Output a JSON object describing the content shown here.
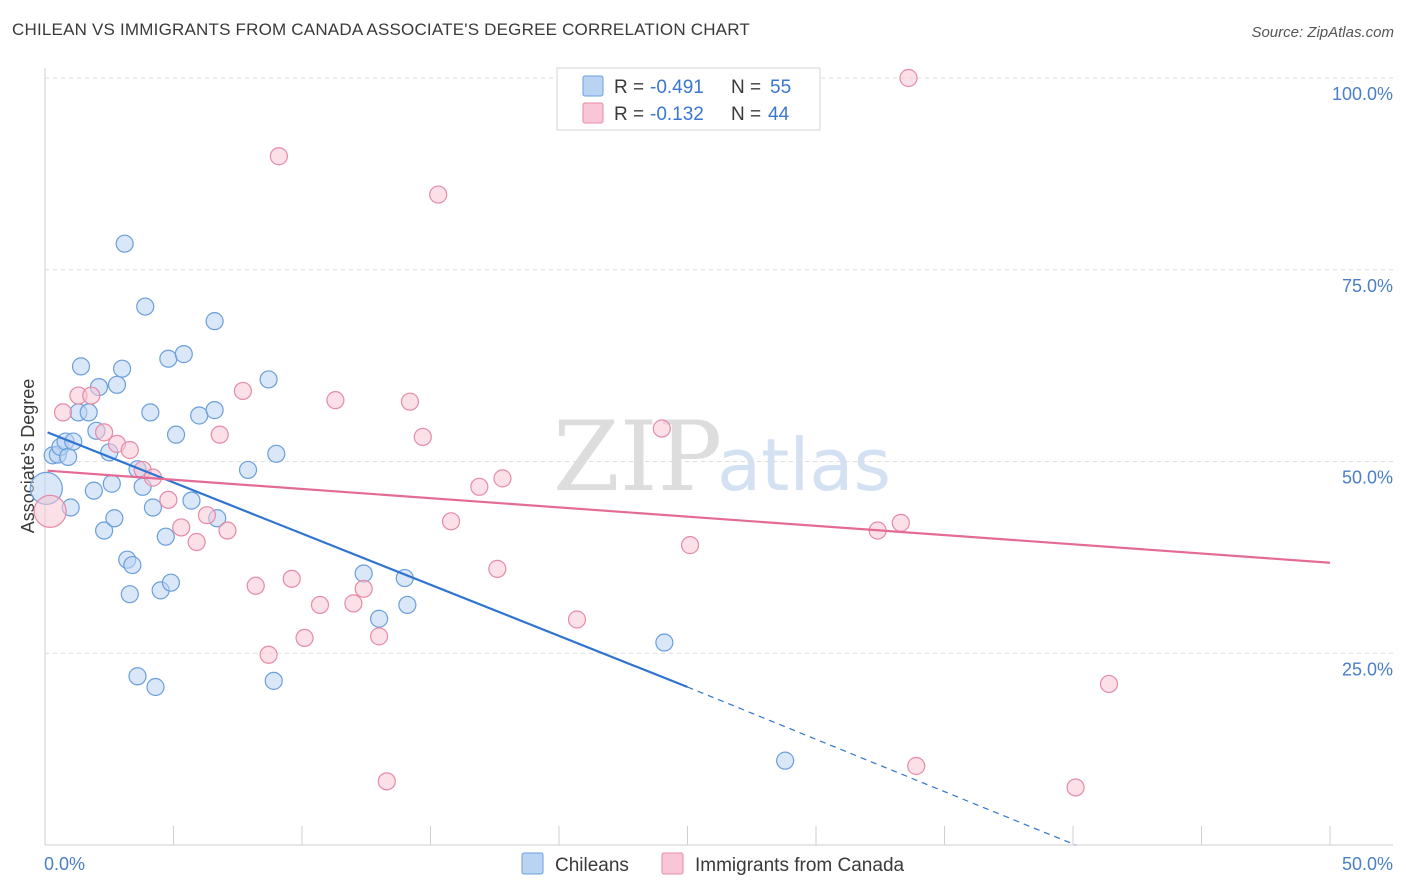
{
  "header": {
    "title": "CHILEAN VS IMMIGRANTS FROM CANADA ASSOCIATE'S DEGREE CORRELATION CHART",
    "source": "Source: ZipAtlas.com"
  },
  "watermark": {
    "part1": "ZIP",
    "part2": "atlas"
  },
  "legend": {
    "rows": [
      {
        "r_label": "R =",
        "r_value": "-0.491",
        "n_label": "N =",
        "n_value": "55"
      },
      {
        "r_label": "R =",
        "r_value": "-0.132",
        "n_label": "N =",
        "n_value": "44"
      }
    ]
  },
  "colors": {
    "blue_fill": "#b9d3f3",
    "blue_stroke": "#6a9fdc",
    "blue_line": "#2f74d0",
    "pink_fill": "#f8c6d6",
    "pink_stroke": "#e58aa8",
    "pink_line": "#e36b95",
    "tick_text": "#4a7fc8",
    "grid": "#dcdcdc"
  },
  "chart_data": {
    "type": "scatter",
    "ylabel": "Associate's Degree",
    "xlim": [
      0,
      50
    ],
    "ylim": [
      0,
      100
    ],
    "y_ticks": [
      {
        "value": 100,
        "label": "100.0%"
      },
      {
        "value": 75,
        "label": "75.0%"
      },
      {
        "value": 50,
        "label": "50.0%"
      },
      {
        "value": 25,
        "label": "25.0%"
      }
    ],
    "x_tick_labels": {
      "min": "0.0%",
      "max": "50.0%"
    },
    "grid": true,
    "legend_position": "top-center",
    "series": [
      {
        "name": "Chileans",
        "color": "#6a9fdc",
        "trend": {
          "x_start": 0.1,
          "y_start": 53.8,
          "x_solid_end": 25.0,
          "y_solid_end": 20.6,
          "x_dash_end": 40.1,
          "y_dash_end": 0.0
        },
        "points": [
          [
            0.05,
            46.5
          ],
          [
            0.3,
            50.8
          ],
          [
            0.5,
            50.9
          ],
          [
            0.6,
            51.9
          ],
          [
            0.8,
            52.6
          ],
          [
            0.9,
            50.6
          ],
          [
            1.0,
            44.0
          ],
          [
            1.1,
            52.6
          ],
          [
            1.3,
            56.4
          ],
          [
            1.4,
            62.4
          ],
          [
            1.7,
            56.4
          ],
          [
            1.9,
            46.2
          ],
          [
            2.0,
            54.0
          ],
          [
            2.1,
            59.7
          ],
          [
            2.3,
            41.0
          ],
          [
            2.5,
            51.2
          ],
          [
            2.6,
            47.1
          ],
          [
            2.7,
            42.6
          ],
          [
            2.8,
            60.0
          ],
          [
            3.0,
            62.1
          ],
          [
            3.1,
            78.4
          ],
          [
            3.2,
            37.2
          ],
          [
            3.3,
            32.7
          ],
          [
            3.4,
            36.5
          ],
          [
            3.6,
            49.0
          ],
          [
            3.6,
            22.0
          ],
          [
            3.8,
            46.7
          ],
          [
            3.9,
            70.2
          ],
          [
            4.1,
            56.4
          ],
          [
            4.2,
            44.0
          ],
          [
            4.3,
            20.6
          ],
          [
            4.5,
            33.2
          ],
          [
            4.7,
            40.2
          ],
          [
            4.8,
            63.4
          ],
          [
            4.9,
            34.2
          ],
          [
            5.1,
            53.5
          ],
          [
            5.4,
            64.0
          ],
          [
            5.7,
            44.9
          ],
          [
            6.0,
            56.0
          ],
          [
            6.6,
            68.3
          ],
          [
            6.6,
            56.7
          ],
          [
            6.7,
            42.6
          ],
          [
            7.9,
            48.9
          ],
          [
            8.7,
            60.7
          ],
          [
            8.9,
            21.4
          ],
          [
            9.0,
            51.0
          ],
          [
            12.4,
            35.4
          ],
          [
            13.0,
            29.5
          ],
          [
            14.0,
            34.8
          ],
          [
            14.1,
            31.3
          ],
          [
            24.1,
            26.4
          ],
          [
            28.8,
            11.0
          ]
        ]
      },
      {
        "name": "Immigrants from Canada",
        "color": "#e58aa8",
        "trend": {
          "x_start": 0.1,
          "y_start": 48.8,
          "x_end": 50.0,
          "y_end": 36.8
        },
        "points": [
          [
            0.2,
            43.5
          ],
          [
            0.7,
            56.4
          ],
          [
            1.3,
            58.6
          ],
          [
            1.8,
            58.6
          ],
          [
            2.3,
            53.8
          ],
          [
            2.8,
            52.3
          ],
          [
            3.3,
            51.5
          ],
          [
            3.8,
            48.9
          ],
          [
            4.2,
            47.9
          ],
          [
            4.8,
            45.0
          ],
          [
            5.3,
            41.4
          ],
          [
            5.9,
            39.5
          ],
          [
            6.3,
            43.0
          ],
          [
            6.8,
            53.5
          ],
          [
            7.1,
            41.0
          ],
          [
            7.7,
            59.2
          ],
          [
            8.2,
            33.8
          ],
          [
            8.7,
            24.8
          ],
          [
            9.1,
            89.8
          ],
          [
            9.6,
            34.7
          ],
          [
            10.1,
            27.0
          ],
          [
            10.7,
            31.3
          ],
          [
            11.3,
            58.0
          ],
          [
            12.0,
            31.5
          ],
          [
            12.4,
            33.4
          ],
          [
            13.0,
            27.2
          ],
          [
            13.3,
            8.3
          ],
          [
            14.2,
            57.8
          ],
          [
            14.7,
            53.2
          ],
          [
            15.3,
            84.8
          ],
          [
            15.8,
            42.2
          ],
          [
            16.9,
            46.7
          ],
          [
            17.6,
            36.0
          ],
          [
            17.8,
            47.8
          ],
          [
            20.7,
            29.4
          ],
          [
            24.0,
            54.3
          ],
          [
            25.1,
            39.1
          ],
          [
            32.4,
            41.0
          ],
          [
            33.3,
            42.0
          ],
          [
            33.6,
            100.0
          ],
          [
            33.9,
            10.3
          ],
          [
            40.1,
            7.5
          ],
          [
            41.4,
            21.0
          ]
        ]
      }
    ]
  }
}
